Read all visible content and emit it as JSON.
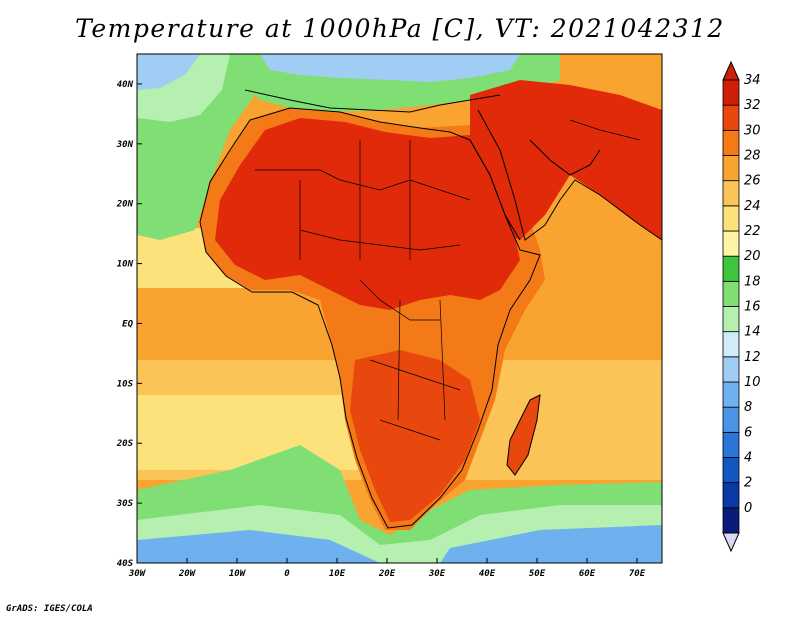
{
  "title": "Temperature at 1000hPa [C], VT: 2021042312",
  "credit": "GrADS: IGES/COLA",
  "map": {
    "lon_range": [
      -30,
      75
    ],
    "lat_range": [
      -40,
      45
    ],
    "lon_ticks": [
      {
        "value": -30,
        "label": "30W"
      },
      {
        "value": -20,
        "label": "20W"
      },
      {
        "value": -10,
        "label": "10W"
      },
      {
        "value": 0,
        "label": "0"
      },
      {
        "value": 10,
        "label": "10E"
      },
      {
        "value": 20,
        "label": "20E"
      },
      {
        "value": 30,
        "label": "30E"
      },
      {
        "value": 40,
        "label": "40E"
      },
      {
        "value": 50,
        "label": "50E"
      },
      {
        "value": 60,
        "label": "60E"
      },
      {
        "value": 70,
        "label": "70E"
      }
    ],
    "lat_ticks": [
      {
        "value": 40,
        "label": "40N"
      },
      {
        "value": 30,
        "label": "30N"
      },
      {
        "value": 20,
        "label": "20N"
      },
      {
        "value": 10,
        "label": "10N"
      },
      {
        "value": 0,
        "label": "EQ"
      },
      {
        "value": -10,
        "label": "10S"
      },
      {
        "value": -20,
        "label": "20S"
      },
      {
        "value": -30,
        "label": "30S"
      },
      {
        "value": -40,
        "label": "40S"
      }
    ]
  },
  "colorbar": {
    "levels": [
      "0",
      "2",
      "4",
      "6",
      "8",
      "10",
      "12",
      "14",
      "16",
      "18",
      "20",
      "22",
      "24",
      "26",
      "28",
      "30",
      "32",
      "34"
    ],
    "colors": [
      "#0a1b7a",
      "#0b3aa8",
      "#1257c4",
      "#2a75d8",
      "#4a95e6",
      "#6fb1ee",
      "#a0cdf3",
      "#d2ecf7",
      "#b5f0b0",
      "#7fdf74",
      "#3ec63d",
      "#fff4a6",
      "#fde17a",
      "#fbc456",
      "#f9a431",
      "#f47a18",
      "#e8470e",
      "#d01f08"
    ],
    "below_color": "#dcd8f5"
  },
  "colors": {
    "land_hot": "#e02a0a",
    "land_warm": "#f06a1a",
    "ocean_warm": "#f7a531",
    "ocean_mild": "#fbc35a",
    "green": "#6fd861",
    "cold": "#a9d5f2",
    "coast": "#000000"
  }
}
